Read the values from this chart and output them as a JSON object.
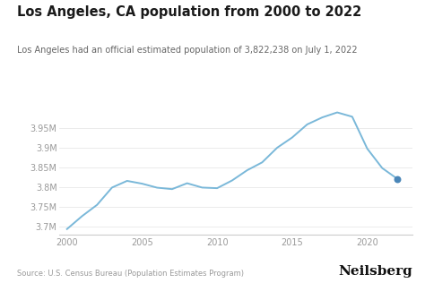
{
  "title": "Los Angeles, CA population from 2000 to 2022",
  "subtitle": "Los Angeles had an official estimated population of 3,822,238 on July 1, 2022",
  "source": "Source: U.S. Census Bureau (Population Estimates Program)",
  "branding": "Neilsberg",
  "years": [
    2000,
    2001,
    2002,
    2003,
    2004,
    2005,
    2006,
    2007,
    2008,
    2009,
    2010,
    2011,
    2012,
    2013,
    2014,
    2015,
    2016,
    2017,
    2018,
    2019,
    2020,
    2021,
    2022
  ],
  "population": [
    3694820,
    3727478,
    3756084,
    3800063,
    3816938,
    3809875,
    3799720,
    3796023,
    3810946,
    3800000,
    3798415,
    3818020,
    3843849,
    3863839,
    3900963,
    3926863,
    3960044,
    3977750,
    3990456,
    3979576,
    3898747,
    3849297,
    3822238
  ],
  "line_color": "#7ab8d9",
  "dot_color": "#4a86b8",
  "background_color": "#ffffff",
  "ylim": [
    3680000,
    4010000
  ],
  "yticks": [
    3700000,
    3750000,
    3800000,
    3850000,
    3900000,
    3950000
  ],
  "xticks": [
    2000,
    2005,
    2010,
    2015,
    2020
  ],
  "title_fontsize": 10.5,
  "subtitle_fontsize": 7,
  "tick_fontsize": 7,
  "source_fontsize": 6,
  "branding_fontsize": 11
}
